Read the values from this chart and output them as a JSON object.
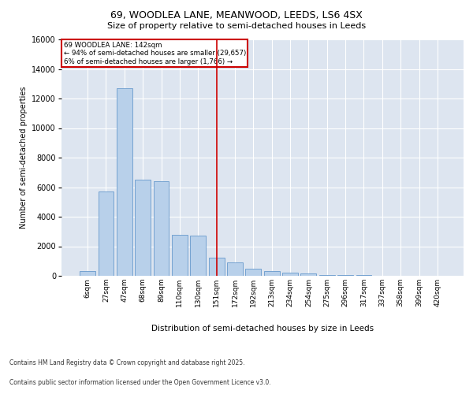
{
  "title_line1": "69, WOODLEA LANE, MEANWOOD, LEEDS, LS6 4SX",
  "title_line2": "Size of property relative to semi-detached houses in Leeds",
  "xlabel": "Distribution of semi-detached houses by size in Leeds",
  "ylabel": "Number of semi-detached properties",
  "categories": [
    "6sqm",
    "27sqm",
    "47sqm",
    "68sqm",
    "89sqm",
    "110sqm",
    "130sqm",
    "151sqm",
    "172sqm",
    "192sqm",
    "213sqm",
    "234sqm",
    "254sqm",
    "275sqm",
    "296sqm",
    "317sqm",
    "337sqm",
    "358sqm",
    "399sqm",
    "420sqm"
  ],
  "values": [
    300,
    5700,
    12700,
    6500,
    6400,
    2800,
    2700,
    1250,
    900,
    500,
    300,
    200,
    150,
    80,
    50,
    30,
    20,
    10,
    5,
    2
  ],
  "bar_color": "#b8d0ea",
  "bar_edge_color": "#6699cc",
  "vline_x": 7,
  "vline_color": "#cc0000",
  "annotation_title": "69 WOODLEA LANE: 142sqm",
  "annotation_line2": "← 94% of semi-detached houses are smaller (29,657)",
  "annotation_line3": "6% of semi-detached houses are larger (1,766) →",
  "annotation_box_color": "#cc0000",
  "ylim": [
    0,
    16000
  ],
  "yticks": [
    0,
    2000,
    4000,
    6000,
    8000,
    10000,
    12000,
    14000,
    16000
  ],
  "footer_line1": "Contains HM Land Registry data © Crown copyright and database right 2025.",
  "footer_line2": "Contains public sector information licensed under the Open Government Licence v3.0.",
  "background_color": "#dde5f0"
}
